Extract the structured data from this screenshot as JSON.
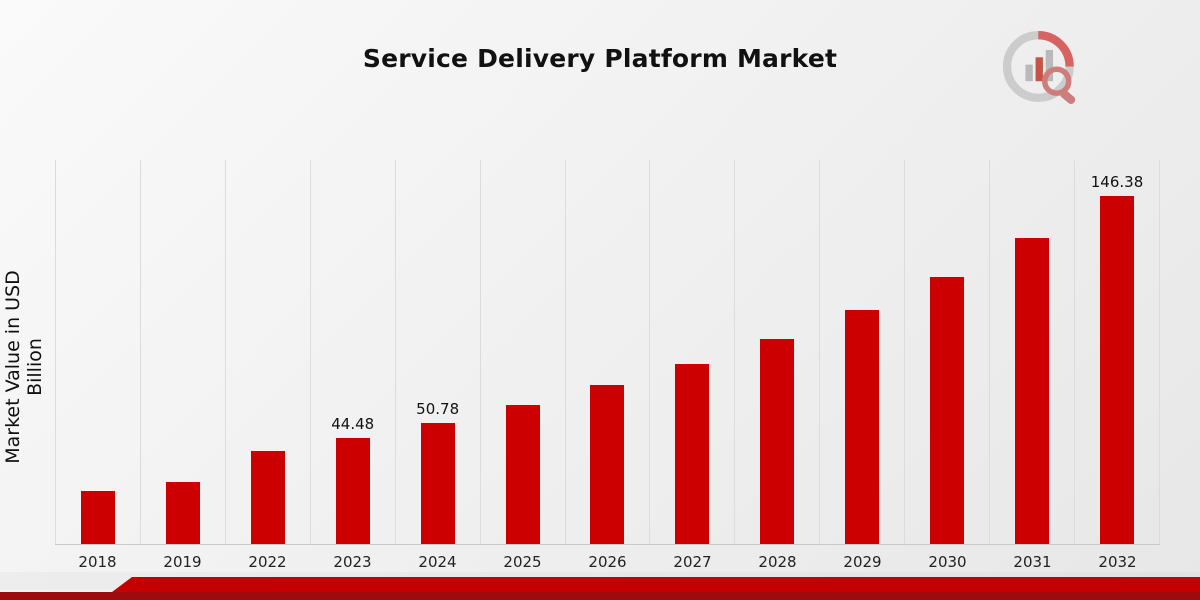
{
  "header": {
    "title": "Service Delivery Platform Market",
    "logo_name": "market-research-future-logo"
  },
  "colors": {
    "bar": "#cc0001",
    "strip_red": "#c40000",
    "strip_dark_red": "#9e0b0f",
    "background_light": "#fafafa",
    "background_dark": "#e7e7e7",
    "gridline": "#dcdcdc",
    "text": "#111111"
  },
  "chart_data": {
    "type": "bar",
    "title": "Service Delivery Platform Market",
    "xlabel": "",
    "ylabel": "Market Value in USD Billion",
    "ylim": [
      0,
      162
    ],
    "grid": "vertical-light",
    "legend": "none",
    "categories": [
      "2018",
      "2019",
      "2022",
      "2023",
      "2024",
      "2025",
      "2026",
      "2027",
      "2028",
      "2029",
      "2030",
      "2031",
      "2032"
    ],
    "values": [
      22.2,
      26.0,
      39.0,
      44.48,
      50.78,
      58.3,
      66.7,
      75.9,
      86.4,
      98.6,
      112.4,
      128.8,
      146.38
    ],
    "labels": [
      "",
      "",
      "",
      "44.48",
      "50.78",
      "",
      "",
      "",
      "",
      "",
      "",
      "",
      "146.38"
    ],
    "bar_color": "#cc0001"
  }
}
